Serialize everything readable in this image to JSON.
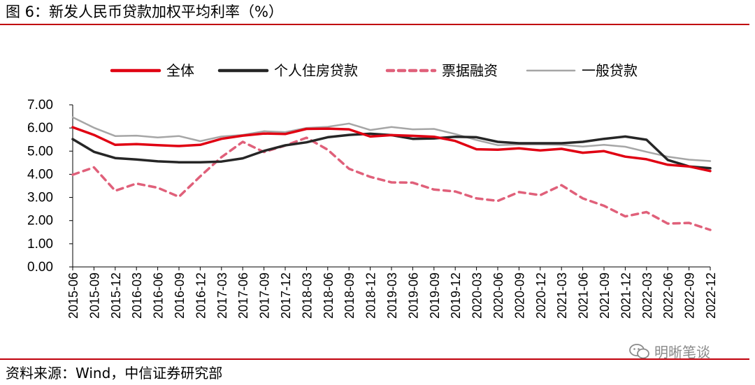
{
  "header": {
    "title": "图 6：新发人民币贷款加权平均利率（%）"
  },
  "footer": {
    "source": "资料来源：Wind，中信证券研究部",
    "watermark": "明晰笔谈"
  },
  "chart_data": {
    "type": "line",
    "title": "新发人民币贷款加权平均利率（%）",
    "xlabel": "",
    "ylabel": "",
    "ylim": [
      0,
      7
    ],
    "yticks": [
      "0.00",
      "1.00",
      "2.00",
      "3.00",
      "4.00",
      "5.00",
      "6.00",
      "7.00"
    ],
    "ytick_values": [
      0,
      1,
      2,
      3,
      4,
      5,
      6,
      7
    ],
    "legend_position": "top",
    "categories": [
      "2015-06",
      "2015-09",
      "2015-12",
      "2016-03",
      "2016-06",
      "2016-09",
      "2016-12",
      "2017-03",
      "2017-06",
      "2017-09",
      "2017-12",
      "2018-03",
      "2018-06",
      "2018-09",
      "2018-12",
      "2019-03",
      "2019-06",
      "2019-09",
      "2019-12",
      "2020-03",
      "2020-06",
      "2020-09",
      "2020-12",
      "2021-03",
      "2021-06",
      "2021-09",
      "2021-12",
      "2022-03",
      "2022-06",
      "2022-09",
      "2022-12"
    ],
    "series": [
      {
        "name": "全体",
        "color": "#e00012",
        "style": "solid",
        "values": [
          6.03,
          5.7,
          5.27,
          5.3,
          5.26,
          5.22,
          5.27,
          5.53,
          5.67,
          5.76,
          5.74,
          5.96,
          5.97,
          5.94,
          5.63,
          5.69,
          5.66,
          5.62,
          5.44,
          5.08,
          5.06,
          5.12,
          5.03,
          5.1,
          4.93,
          5.0,
          4.76,
          4.65,
          4.41,
          4.34,
          4.14
        ]
      },
      {
        "name": "个人住房贷款",
        "color": "#262626",
        "style": "solid",
        "values": [
          5.52,
          4.97,
          4.7,
          4.64,
          4.56,
          4.52,
          4.52,
          4.55,
          4.69,
          5.01,
          5.25,
          5.38,
          5.6,
          5.7,
          5.75,
          5.69,
          5.53,
          5.55,
          5.62,
          5.6,
          5.4,
          5.34,
          5.34,
          5.34,
          5.4,
          5.53,
          5.63,
          5.49,
          4.62,
          4.34,
          4.26
        ]
      },
      {
        "name": "票据融资",
        "color": "#e0607a",
        "style": "dashed",
        "values": [
          3.98,
          4.3,
          3.29,
          3.6,
          3.42,
          3.03,
          3.91,
          4.74,
          5.4,
          4.96,
          5.24,
          5.58,
          5.06,
          4.24,
          3.89,
          3.65,
          3.64,
          3.34,
          3.26,
          2.96,
          2.85,
          3.23,
          3.1,
          3.53,
          2.96,
          2.64,
          2.18,
          2.37,
          1.87,
          1.9,
          1.6
        ]
      },
      {
        "name": "一般贷款",
        "color": "#a6a6a6",
        "style": "solid",
        "values": [
          6.46,
          6.01,
          5.65,
          5.67,
          5.59,
          5.65,
          5.43,
          5.63,
          5.7,
          5.86,
          5.82,
          6.0,
          6.05,
          6.19,
          5.91,
          6.04,
          5.94,
          5.96,
          5.74,
          5.48,
          5.26,
          5.29,
          5.29,
          5.27,
          5.2,
          5.27,
          5.19,
          4.97,
          4.76,
          4.63,
          4.57
        ]
      }
    ]
  }
}
